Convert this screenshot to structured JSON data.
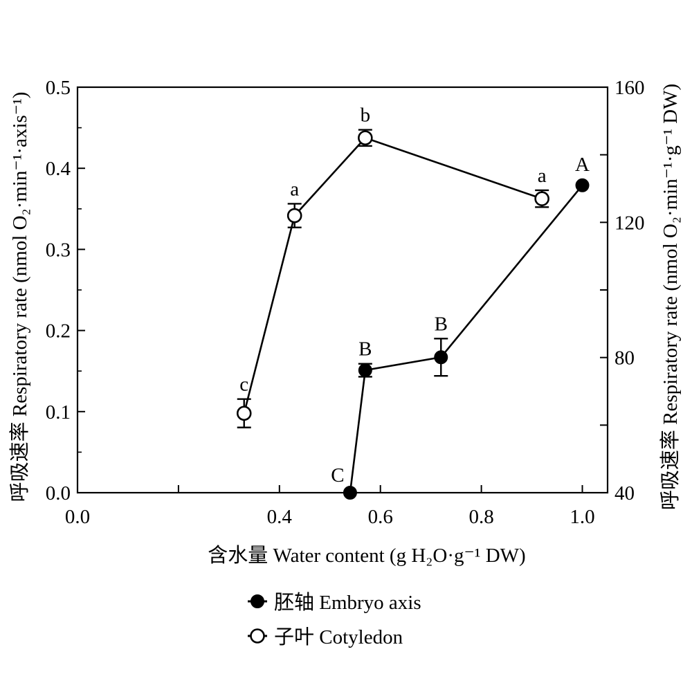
{
  "chart_data": {
    "type": "line",
    "x_axis": {
      "label": "含水量  Water content (g H₂O·g⁻¹ DW)",
      "range": [
        0.0,
        1.05
      ],
      "ticks": [
        0.0,
        0.2,
        0.4,
        0.6,
        0.8,
        1.0
      ],
      "tick_labels": [
        "0.0",
        "",
        "0.4",
        "0.6",
        "0.8",
        "1.0"
      ]
    },
    "y_axis_left": {
      "label": "呼吸速率 Respiratory rate (nmol O₂·min⁻¹·axis⁻¹)",
      "range": [
        0.0,
        0.5
      ],
      "ticks": [
        0.0,
        0.1,
        0.2,
        0.3,
        0.4,
        0.5
      ],
      "tick_labels": [
        "0.0",
        "0.1",
        "0.2",
        "0.3",
        "0.4",
        "0.5"
      ]
    },
    "y_axis_right": {
      "label": "呼吸速率  Respiratory rate (nmol O₂·min⁻¹·g⁻¹ DW)",
      "range": [
        40,
        160
      ],
      "ticks": [
        40,
        60,
        80,
        100,
        120,
        140,
        160
      ],
      "tick_labels": [
        "40",
        "",
        "80",
        "",
        "120",
        "",
        "160"
      ]
    },
    "grid": false,
    "legend_position": "bottom-center",
    "series": [
      {
        "name": "胚轴  Embryo axis",
        "axis": "left",
        "marker": "filled-circle",
        "x": [
          0.54,
          0.57,
          0.72,
          1.0
        ],
        "y": [
          0.0,
          0.151,
          0.167,
          0.379
        ],
        "err": [
          0.0,
          0.008,
          0.023,
          0.0
        ],
        "labels": [
          "C",
          "B",
          "B",
          "A"
        ]
      },
      {
        "name": "子叶  Cotyledon",
        "axis": "right",
        "marker": "open-circle",
        "x": [
          0.33,
          0.43,
          0.57,
          0.92
        ],
        "y": [
          63.5,
          122,
          145,
          127
        ],
        "err": [
          4.2,
          3.5,
          2.4,
          2.5
        ],
        "labels": [
          "c",
          "a",
          "b",
          "a"
        ]
      }
    ]
  }
}
